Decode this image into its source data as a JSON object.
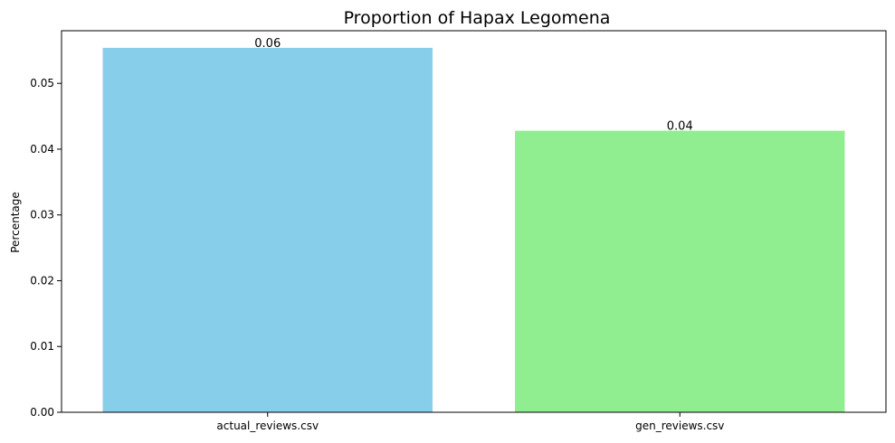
{
  "chart_data": {
    "type": "bar",
    "title": "Proportion of Hapax Legomena",
    "xlabel": "",
    "ylabel": "Percentage",
    "categories": [
      "actual_reviews.csv",
      "gen_reviews.csv"
    ],
    "values": [
      0.0554,
      0.0428
    ],
    "data_labels": [
      "0.06",
      "0.04"
    ],
    "colors": [
      "#87ceeb",
      "#90ee90"
    ],
    "ylim": [
      0,
      0.058
    ],
    "yticks": [
      0.0,
      0.01,
      0.02,
      0.03,
      0.04,
      0.05
    ],
    "ytick_labels": [
      "0.00",
      "0.01",
      "0.02",
      "0.03",
      "0.04",
      "0.05"
    ],
    "grid": false,
    "legend": "none"
  }
}
